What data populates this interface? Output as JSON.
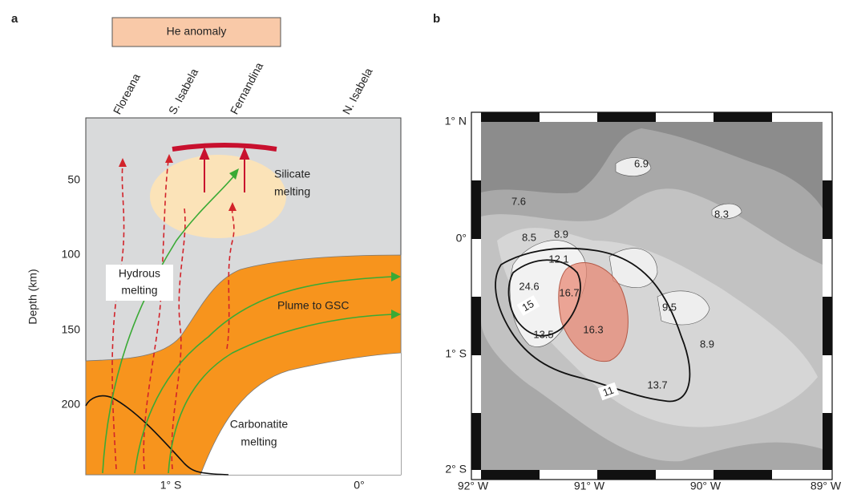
{
  "panel_a": {
    "label": "a",
    "anomaly_label": "He anomaly",
    "volcanoes": [
      "Floreana",
      "S. Isabela",
      "Fernandina",
      "N. Isabela"
    ],
    "y_axis_title": "Depth (km)",
    "y_ticks": [
      "50",
      "100",
      "150",
      "200"
    ],
    "x_ticks": [
      "1° S",
      "0°"
    ],
    "silicate_melting": [
      "Silicate",
      "melting"
    ],
    "hydrous_melting": [
      "Hydrous",
      "melting"
    ],
    "plume_label": "Plume to GSC",
    "carbonatite_melting": [
      "Carbonatite",
      "melting"
    ]
  },
  "panel_b": {
    "label": "b",
    "lat_labels": [
      "1° N",
      "0°",
      "1° S",
      "2° S"
    ],
    "lon_labels": [
      "92° W",
      "91° W",
      "90° W",
      "89° W"
    ],
    "contour_values": [
      "6.9",
      "7.6",
      "8.3",
      "8.5",
      "8.9",
      "12.1",
      "24.6",
      "16.7",
      "9.5",
      "15",
      "13.5",
      "16.3",
      "8.9",
      "11",
      "13.7"
    ]
  }
}
